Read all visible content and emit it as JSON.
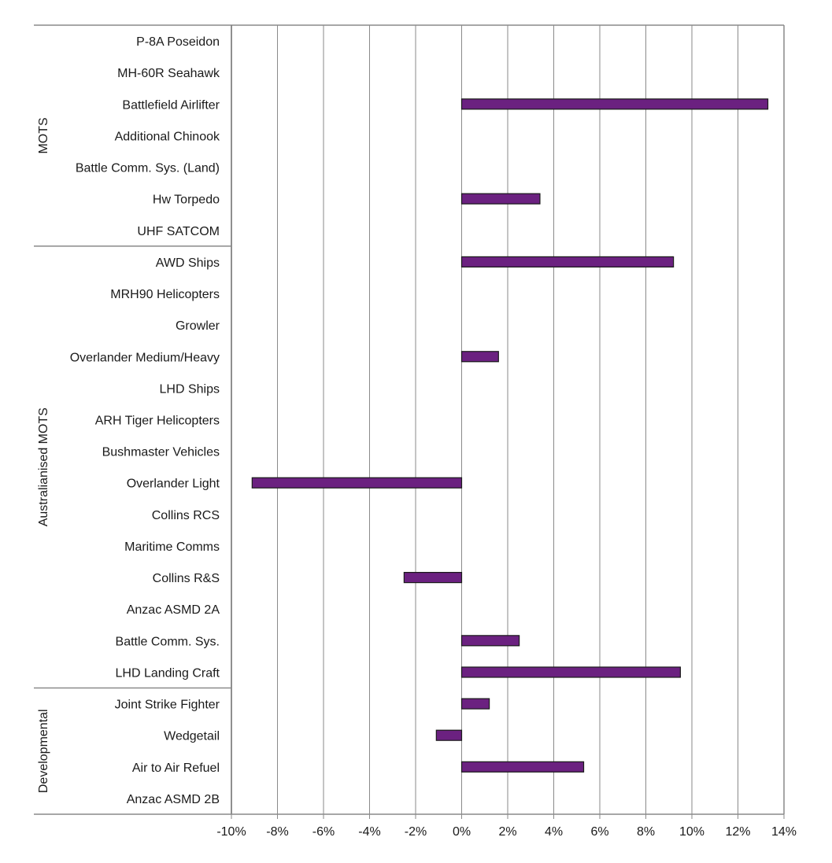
{
  "chart_data": {
    "type": "bar",
    "orientation": "horizontal",
    "title": "",
    "xlabel": "",
    "ylabel": "",
    "xlim": [
      -10,
      14
    ],
    "x_ticks": [
      -10,
      -8,
      -6,
      -4,
      -2,
      0,
      2,
      4,
      6,
      8,
      10,
      12,
      14
    ],
    "x_tick_labels": [
      "-10%",
      "-8%",
      "-6%",
      "-4%",
      "-2%",
      "0%",
      "2%",
      "4%",
      "6%",
      "8%",
      "10%",
      "12%",
      "14%"
    ],
    "grid": "vertical",
    "legend": "none",
    "bar_color": "#6b2180",
    "bar_edge_color": "#1a1a1a",
    "categories": [
      "P-8A Poseidon",
      "MH-60R Seahawk",
      "Battlefield Airlifter",
      "Additional Chinook",
      "Battle Comm. Sys. (Land)",
      "Hw Torpedo",
      "UHF SATCOM",
      "AWD Ships",
      "MRH90 Helicopters",
      "Growler",
      "Overlander Medium/Heavy",
      "LHD Ships",
      "ARH Tiger Helicopters",
      "Bushmaster Vehicles",
      "Overlander Light",
      "Collins RCS",
      "Maritime Comms",
      "Collins R&S",
      "Anzac ASMD 2A",
      "Battle Comm. Sys.",
      "LHD Landing Craft",
      "Joint Strike Fighter",
      "Wedgetail",
      "Air to Air Refuel",
      "Anzac ASMD 2B"
    ],
    "values": [
      0,
      0,
      13.3,
      0,
      0,
      3.4,
      0,
      9.2,
      0,
      0,
      1.6,
      0,
      0,
      0,
      -9.1,
      0,
      0,
      -2.5,
      0,
      2.5,
      9.5,
      1.2,
      -1.1,
      5.3,
      0
    ],
    "groups": [
      {
        "label": "MOTS",
        "start": 0,
        "end": 6
      },
      {
        "label": "Australianised MOTS",
        "start": 7,
        "end": 20
      },
      {
        "label": "Developmental",
        "start": 21,
        "end": 24
      }
    ]
  }
}
